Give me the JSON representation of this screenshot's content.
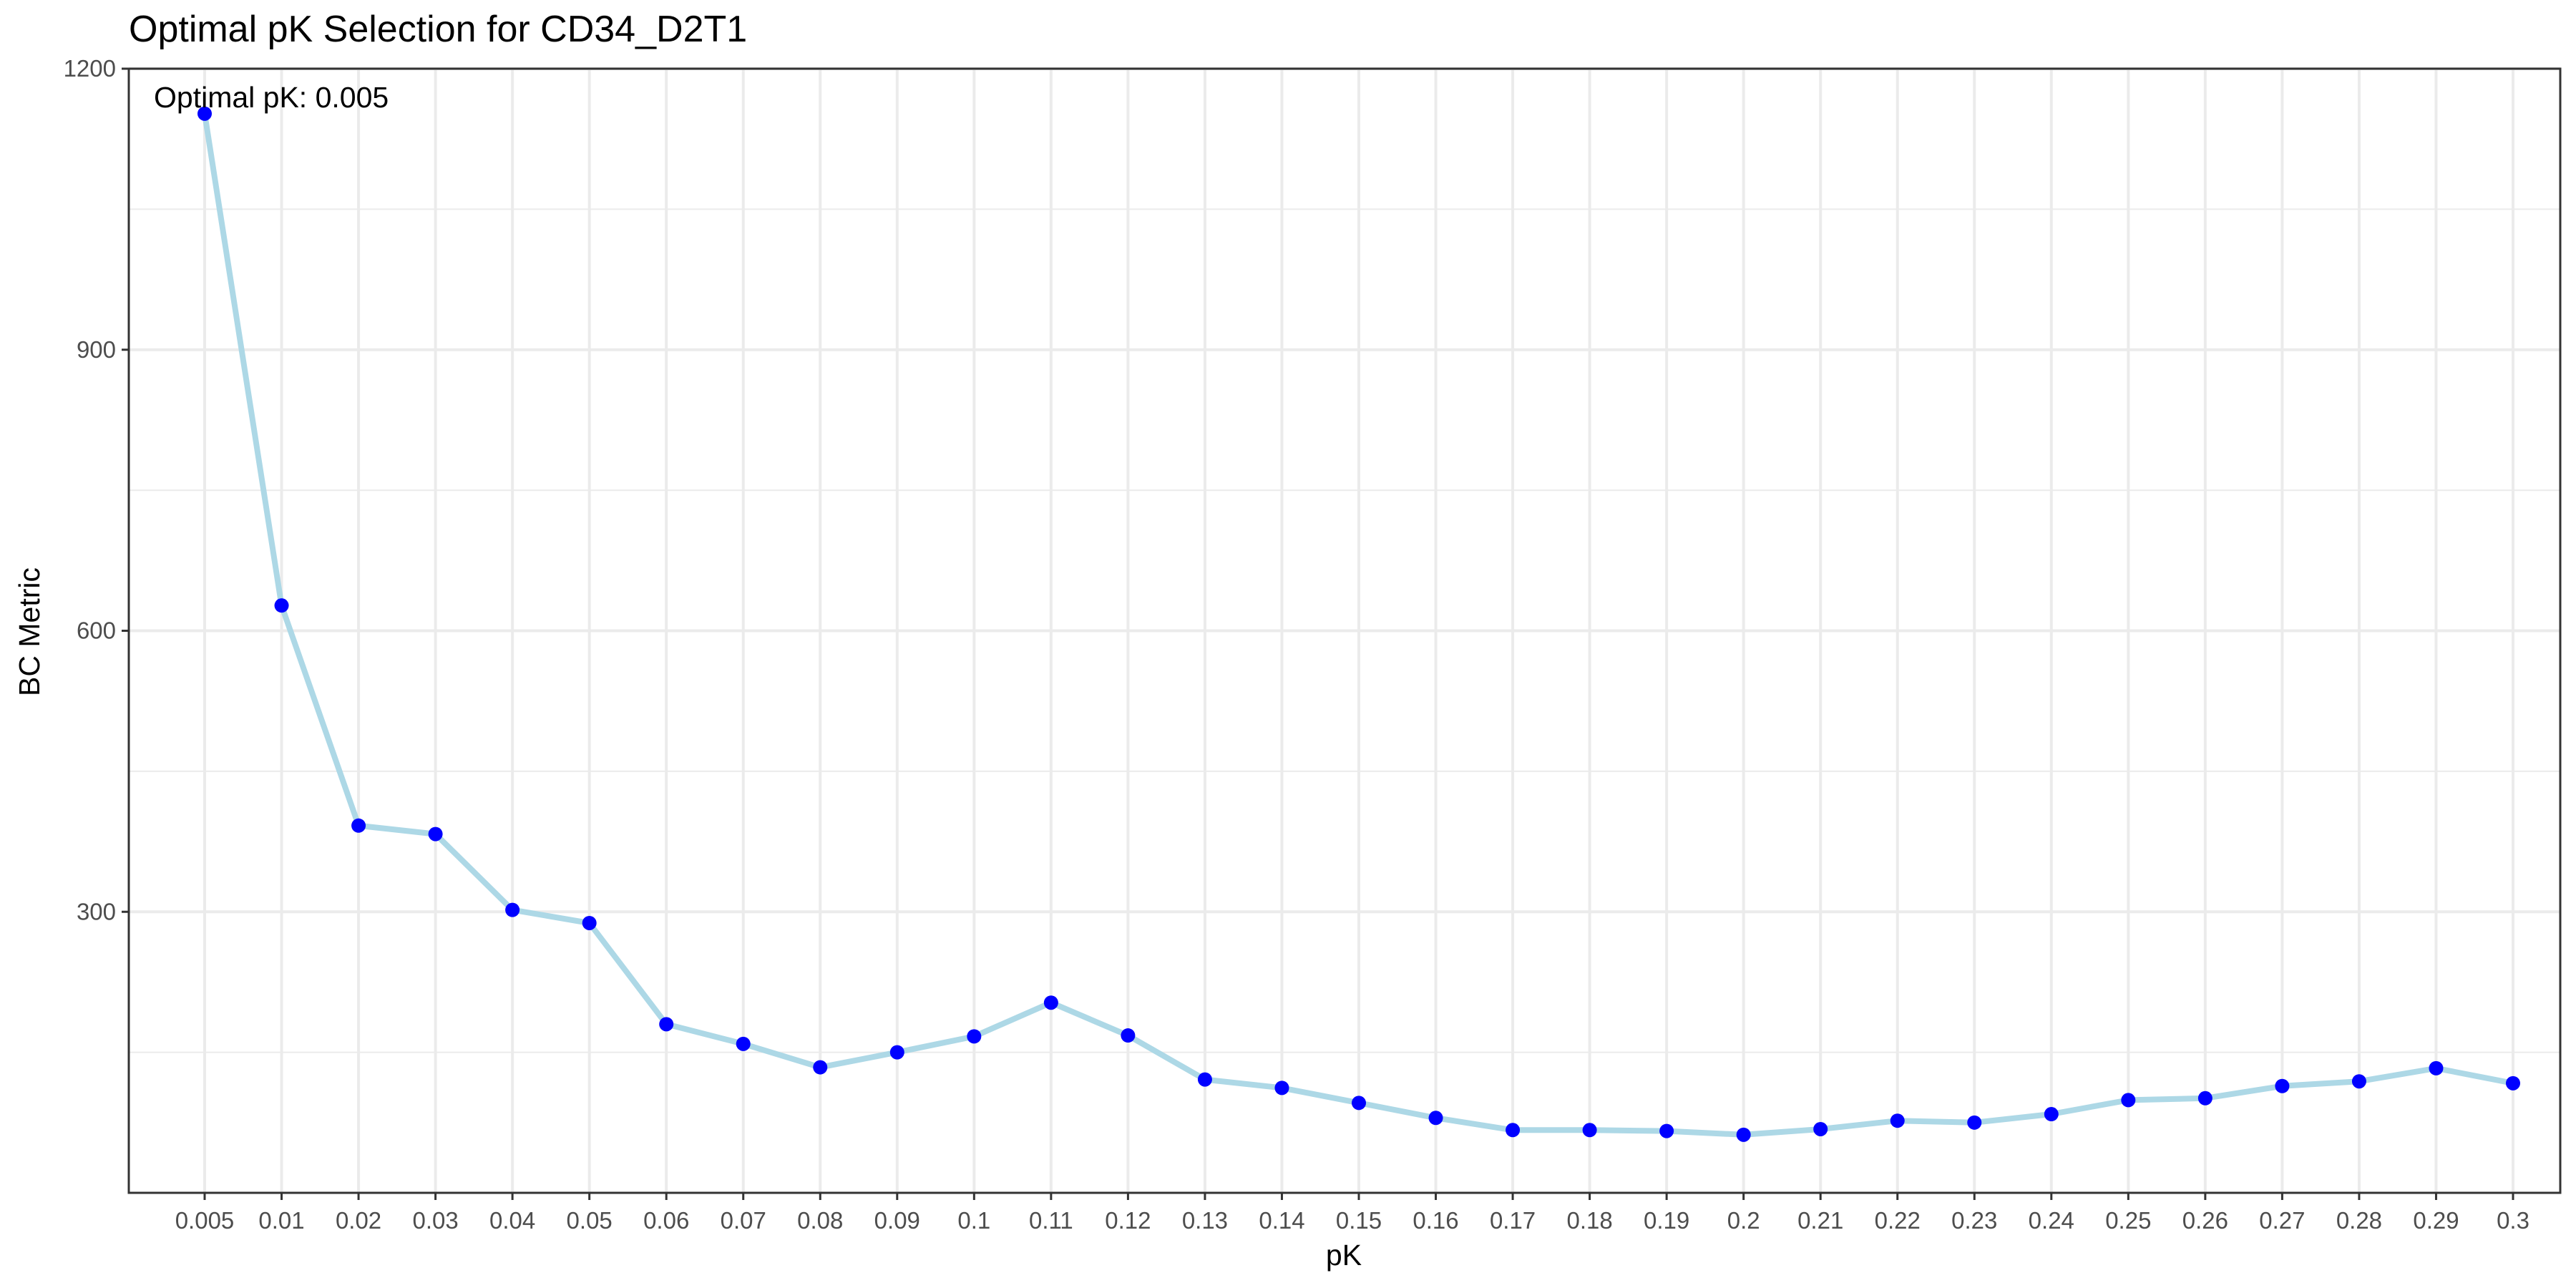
{
  "chart_data": {
    "type": "line",
    "title": "Optimal pK Selection for CD34_D2T1",
    "xlabel": "pK",
    "ylabel": "BC Metric",
    "x": [
      "0.005",
      "0.01",
      "0.02",
      "0.03",
      "0.04",
      "0.05",
      "0.06",
      "0.07",
      "0.08",
      "0.09",
      "0.1",
      "0.11",
      "0.12",
      "0.13",
      "0.14",
      "0.15",
      "0.16",
      "0.17",
      "0.18",
      "0.19",
      "0.2",
      "0.21",
      "0.22",
      "0.23",
      "0.24",
      "0.25",
      "0.26",
      "0.27",
      "0.28",
      "0.29",
      "0.3"
    ],
    "series": [
      {
        "values": [
          1152,
          627,
          392,
          383,
          302,
          288,
          180,
          159,
          134,
          150,
          167,
          203,
          168,
          121,
          112,
          96,
          80,
          67,
          67,
          66,
          62,
          68,
          77,
          75,
          84,
          99,
          101,
          114,
          119,
          133,
          117
        ]
      }
    ],
    "ylim": [
      0,
      1200
    ],
    "yticks": [
      300,
      600,
      900,
      1200
    ],
    "grid": true,
    "annotation": "Optimal pK: 0.005",
    "colors": {
      "line": "#add8e6",
      "points": "#0000ff",
      "grid": "#ebebeb",
      "axis": "#333333"
    }
  }
}
